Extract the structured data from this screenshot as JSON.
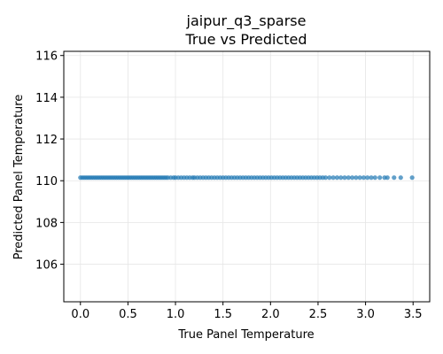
{
  "chart_data": {
    "type": "scatter",
    "title": "jaipur_q3_sparse",
    "subtitle": "True vs Predicted",
    "xlabel": "True Panel Temperature",
    "ylabel": "Predicted Panel Temperature",
    "xlim": [
      -0.175,
      3.675
    ],
    "ylim": [
      104.2,
      116.2
    ],
    "xticks": [
      0.0,
      0.5,
      1.0,
      1.5,
      2.0,
      2.5,
      3.0,
      3.5
    ],
    "xtick_labels": [
      "0.0",
      "0.5",
      "1.0",
      "1.5",
      "2.0",
      "2.5",
      "3.0",
      "3.5"
    ],
    "yticks": [
      106,
      108,
      110,
      112,
      114,
      116
    ],
    "ytick_labels": [
      "106",
      "108",
      "110",
      "112",
      "114",
      "116"
    ],
    "grid": true,
    "marker_color": "#1f77b4",
    "series": [
      {
        "x": [
          0.0,
          0.02,
          0.04,
          0.06,
          0.08,
          0.1,
          0.12,
          0.14,
          0.16,
          0.18,
          0.2,
          0.22,
          0.24,
          0.26,
          0.28,
          0.3,
          0.32,
          0.34,
          0.36,
          0.38,
          0.4,
          0.42,
          0.44,
          0.46,
          0.48,
          0.5,
          0.52,
          0.54,
          0.56,
          0.58,
          0.6,
          0.62,
          0.64,
          0.66,
          0.68,
          0.7,
          0.72,
          0.74,
          0.76,
          0.78,
          0.8,
          0.82,
          0.84,
          0.86,
          0.88,
          0.9,
          0.92,
          0.95,
          0.98,
          1.0,
          1.03,
          1.06,
          1.09,
          1.12,
          1.15,
          1.18,
          1.2,
          1.23,
          1.26,
          1.29,
          1.32,
          1.35,
          1.38,
          1.41,
          1.44,
          1.47,
          1.5,
          1.53,
          1.56,
          1.59,
          1.62,
          1.65,
          1.68,
          1.71,
          1.74,
          1.77,
          1.8,
          1.83,
          1.86,
          1.89,
          1.92,
          1.95,
          1.98,
          2.01,
          2.04,
          2.07,
          2.1,
          2.13,
          2.16,
          2.19,
          2.22,
          2.25,
          2.28,
          2.31,
          2.34,
          2.37,
          2.4,
          2.43,
          2.46,
          2.49,
          2.52,
          2.55,
          2.58,
          2.62,
          2.66,
          2.7,
          2.74,
          2.78,
          2.82,
          2.86,
          2.9,
          2.94,
          2.98,
          3.02,
          3.06,
          3.1,
          3.15,
          3.2,
          3.23,
          3.3,
          3.37,
          3.49
        ],
        "y_value": 110.15
      }
    ]
  }
}
